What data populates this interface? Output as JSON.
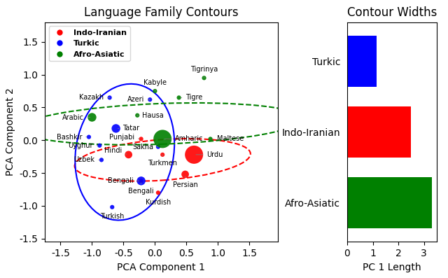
{
  "chart_data": [
    {
      "type": "scatter",
      "title": "Language Family Contours",
      "xlabel": "PCA Component 1",
      "ylabel": "PCA Component 2",
      "xlim": [
        -1.75,
        1.95
      ],
      "ylim": [
        -1.55,
        1.8
      ],
      "xticks": [
        -1.5,
        -1.0,
        -0.5,
        0.0,
        0.5,
        1.0,
        1.5
      ],
      "yticks": [
        -1.5,
        -1.0,
        -0.5,
        0.0,
        0.5,
        1.0,
        1.5
      ],
      "legend": "upper left",
      "series": [
        {
          "name": "Indo-Iranian",
          "color": "red",
          "line_style": "dashed",
          "points": [
            {
              "name": "Urdu",
              "x": 0.62,
              "y": -0.22,
              "size": 350
            },
            {
              "name": "Persian",
              "x": 0.48,
              "y": -0.52,
              "size": 60
            },
            {
              "name": "Hindi",
              "x": -0.42,
              "y": -0.22,
              "size": 60
            },
            {
              "name": "Punjabi",
              "x": -0.22,
              "y": 0.02,
              "size": 20
            },
            {
              "name": "Kurdish",
              "x": 0.05,
              "y": -0.8,
              "size": 20
            },
            {
              "name": "Bengali",
              "x": -0.22,
              "y": -0.62,
              "size": 20
            },
            {
              "name": "Turkmen",
              "x": 0.12,
              "y": -0.22,
              "size": 20
            }
          ],
          "ellipse": {
            "cx": 0.12,
            "cy": -0.3,
            "width": 2.8,
            "height": 0.62,
            "angle": 4
          }
        },
        {
          "name": "Turkic",
          "color": "blue",
          "line_style": "solid",
          "points": [
            {
              "name": "Kazakh",
              "x": -0.72,
              "y": 0.65,
              "size": 20
            },
            {
              "name": "Tatar",
              "x": -0.62,
              "y": 0.18,
              "size": 80
            },
            {
              "name": "Uyghur",
              "x": -0.88,
              "y": -0.08,
              "size": 20
            },
            {
              "name": "Uzbek",
              "x": -0.85,
              "y": -0.3,
              "size": 20
            },
            {
              "name": "Bashkir",
              "x": -1.05,
              "y": 0.05,
              "size": 20
            },
            {
              "name": "Azeri",
              "x": -0.08,
              "y": 0.62,
              "size": 20
            },
            {
              "name": "Turkish",
              "x": -0.68,
              "y": -1.02,
              "size": 20
            },
            {
              "name": "Bengali",
              "x": -0.22,
              "y": -0.62,
              "size": 80
            },
            {
              "name": "Sakha",
              "x": 0.05,
              "y": -0.1,
              "size": 20
            }
          ],
          "ellipse": {
            "cx": -0.48,
            "cy": -0.18,
            "width": 1.55,
            "height": 2.1,
            "angle": -12
          }
        },
        {
          "name": "Afro-Asiatic",
          "color": "green",
          "line_style": "dashed",
          "points": [
            {
              "name": "Arabic",
              "x": -1.0,
              "y": 0.35,
              "size": 80
            },
            {
              "name": "Hausa",
              "x": -0.28,
              "y": 0.38,
              "size": 20
            },
            {
              "name": "Kabyle",
              "x": 0.0,
              "y": 0.75,
              "size": 20
            },
            {
              "name": "Tigre",
              "x": 0.38,
              "y": 0.65,
              "size": 20
            },
            {
              "name": "Tigrinya",
              "x": 0.78,
              "y": 0.95,
              "size": 20
            },
            {
              "name": "Amharic",
              "x": 0.12,
              "y": 0.02,
              "size": 350
            },
            {
              "name": "Maltese",
              "x": 0.88,
              "y": 0.02,
              "size": 20
            }
          ],
          "ellipse": {
            "cx": 0.1,
            "cy": 0.25,
            "width": 4.5,
            "height": 0.62,
            "angle": 2
          }
        }
      ]
    },
    {
      "type": "bar",
      "orientation": "horizontal",
      "title": "Contour Widths",
      "xlabel": "PC 1 Length",
      "categories": [
        "Turkic",
        "Indo-Iranian",
        "Afro-Asiatic"
      ],
      "values": [
        1.15,
        2.5,
        3.3
      ],
      "colors": [
        "blue",
        "red",
        "green"
      ],
      "xlim": [
        0,
        3.5
      ],
      "xticks": [
        0,
        1,
        2,
        3
      ]
    }
  ]
}
